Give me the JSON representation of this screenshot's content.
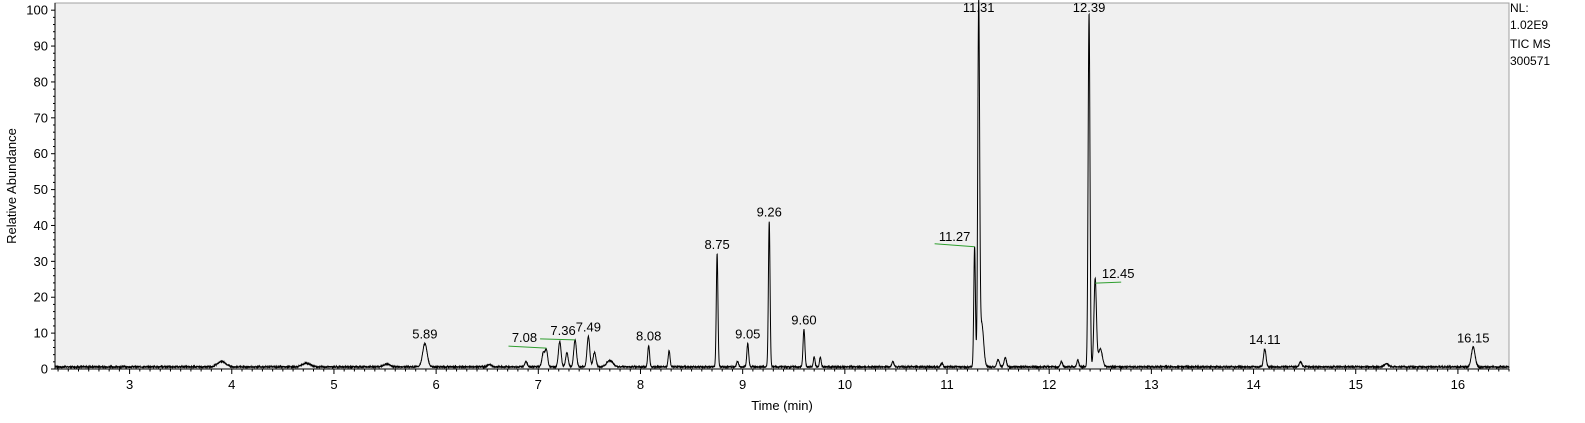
{
  "info_panel": {
    "nl_label": "NL:",
    "nl_value": "1.02E9",
    "scan_filter": "TIC  MS",
    "file_name": "300571"
  },
  "colors": {
    "trace": "#000000",
    "plot_background": "#f0f0f0",
    "annotation_leader": "#2e9e2e",
    "axis": "#000000"
  },
  "chart_data": {
    "type": "line",
    "xlabel": "Time (min)",
    "ylabel": "Relative Abundance",
    "xlim": [
      2.27,
      16.5
    ],
    "ylim": [
      0,
      102
    ],
    "x_ticks": [
      "3",
      "4",
      "5",
      "6",
      "7",
      "8",
      "9",
      "10",
      "11",
      "12",
      "13",
      "14",
      "15",
      "16"
    ],
    "y_ticks": [
      "0",
      "10",
      "20",
      "30",
      "40",
      "50",
      "60",
      "70",
      "80",
      "90",
      "100"
    ],
    "grid": false,
    "baseline": 0.6,
    "peaks": [
      {
        "rt": 3.9,
        "height": 1.5,
        "width": 0.04
      },
      {
        "rt": 4.73,
        "height": 1.0,
        "width": 0.04
      },
      {
        "rt": 5.52,
        "height": 0.8,
        "width": 0.03
      },
      {
        "rt": 5.89,
        "height": 6.5,
        "width": 0.022
      },
      {
        "rt": 6.52,
        "height": 0.6,
        "width": 0.02
      },
      {
        "rt": 6.88,
        "height": 1.5,
        "width": 0.012
      },
      {
        "rt": 7.05,
        "height": 4.0,
        "width": 0.014
      },
      {
        "rt": 7.08,
        "height": 4.5,
        "width": 0.012
      },
      {
        "rt": 7.21,
        "height": 7.0,
        "width": 0.013
      },
      {
        "rt": 7.28,
        "height": 4.0,
        "width": 0.012
      },
      {
        "rt": 7.36,
        "height": 7.5,
        "width": 0.013
      },
      {
        "rt": 7.49,
        "height": 8.5,
        "width": 0.013
      },
      {
        "rt": 7.55,
        "height": 4.0,
        "width": 0.014
      },
      {
        "rt": 7.7,
        "height": 1.8,
        "width": 0.03
      },
      {
        "rt": 8.08,
        "height": 6.0,
        "width": 0.009
      },
      {
        "rt": 8.28,
        "height": 4.5,
        "width": 0.009
      },
      {
        "rt": 8.75,
        "height": 31.5,
        "width": 0.008
      },
      {
        "rt": 8.95,
        "height": 1.5,
        "width": 0.01
      },
      {
        "rt": 9.05,
        "height": 6.5,
        "width": 0.009
      },
      {
        "rt": 9.26,
        "height": 40.5,
        "width": 0.008
      },
      {
        "rt": 9.6,
        "height": 10.5,
        "width": 0.009
      },
      {
        "rt": 9.7,
        "height": 2.8,
        "width": 0.008
      },
      {
        "rt": 9.76,
        "height": 2.8,
        "width": 0.008
      },
      {
        "rt": 10.47,
        "height": 1.5,
        "width": 0.01
      },
      {
        "rt": 10.95,
        "height": 1.0,
        "width": 0.01
      },
      {
        "rt": 11.27,
        "height": 33.5,
        "width": 0.008
      },
      {
        "rt": 11.31,
        "height": 99.5,
        "width": 0.009
      },
      {
        "rt": 11.34,
        "height": 12.0,
        "width": 0.018
      },
      {
        "rt": 11.5,
        "height": 2.0,
        "width": 0.012
      },
      {
        "rt": 11.57,
        "height": 2.5,
        "width": 0.012
      },
      {
        "rt": 12.12,
        "height": 1.5,
        "width": 0.01
      },
      {
        "rt": 12.28,
        "height": 1.8,
        "width": 0.01
      },
      {
        "rt": 12.39,
        "height": 98.5,
        "width": 0.009
      },
      {
        "rt": 12.45,
        "height": 24.5,
        "width": 0.012
      },
      {
        "rt": 12.5,
        "height": 5.0,
        "width": 0.02
      },
      {
        "rt": 14.11,
        "height": 5.0,
        "width": 0.012
      },
      {
        "rt": 14.46,
        "height": 1.5,
        "width": 0.012
      },
      {
        "rt": 15.3,
        "height": 0.9,
        "width": 0.02
      },
      {
        "rt": 16.15,
        "height": 5.5,
        "width": 0.018
      }
    ],
    "annotations": [
      {
        "label": "5.89",
        "rt": 5.89,
        "apex": 6.5,
        "leader": false
      },
      {
        "label": "7.08",
        "rt": 7.08,
        "apex": 4.5,
        "leader": true
      },
      {
        "label": "7.36",
        "rt": 7.36,
        "apex": 7.5,
        "leader": true
      },
      {
        "label": "7.49",
        "rt": 7.49,
        "apex": 8.5,
        "leader": false
      },
      {
        "label": "8.08",
        "rt": 8.08,
        "apex": 6.0,
        "leader": false
      },
      {
        "label": "8.75",
        "rt": 8.75,
        "apex": 31.5,
        "leader": false
      },
      {
        "label": "9.05",
        "rt": 9.05,
        "apex": 6.5,
        "leader": false
      },
      {
        "label": "9.26",
        "rt": 9.26,
        "apex": 40.5,
        "leader": false
      },
      {
        "label": "9.60",
        "rt": 9.6,
        "apex": 10.5,
        "leader": false
      },
      {
        "label": "11.27",
        "rt": 11.27,
        "apex": 33.5,
        "leader": true
      },
      {
        "label": "11.31",
        "rt": 11.31,
        "apex": 99.5,
        "leader": false
      },
      {
        "label": "12.39",
        "rt": 12.39,
        "apex": 98.5,
        "leader": false
      },
      {
        "label": "12.45",
        "rt": 12.45,
        "apex": 24.5,
        "leader": true
      },
      {
        "label": "14.11",
        "rt": 14.11,
        "apex": 5.0,
        "leader": false
      },
      {
        "label": "16.15",
        "rt": 16.15,
        "apex": 5.5,
        "leader": false
      }
    ]
  }
}
